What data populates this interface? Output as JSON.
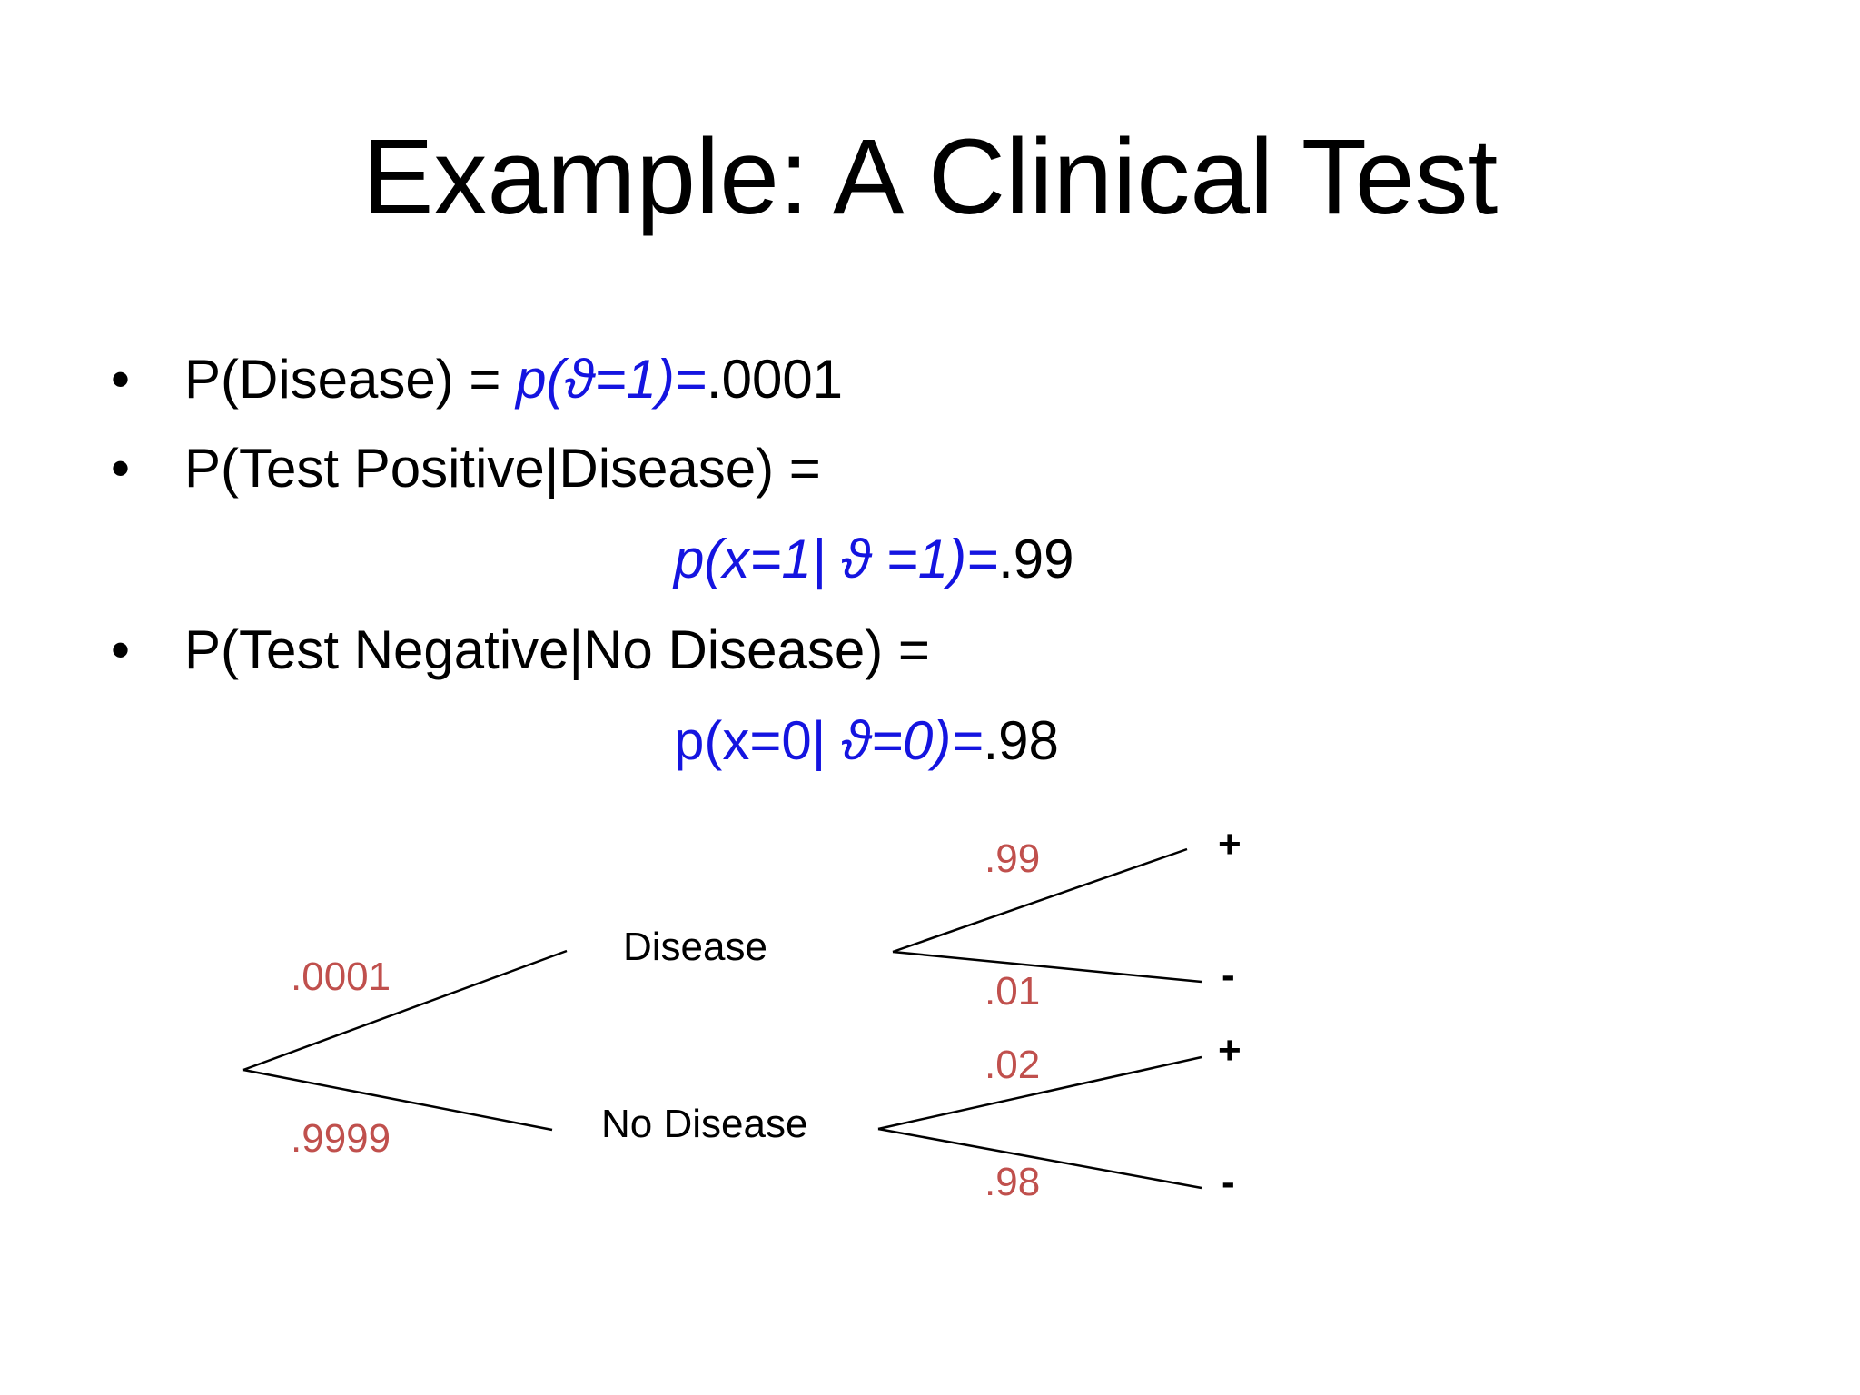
{
  "title": "Example: A Clinical Test",
  "bullets": [
    {
      "marker": "•",
      "prefix": "P(Disease) = ",
      "formula": "p(ϑ=1)=",
      "value": ".0001"
    },
    {
      "marker": "•",
      "prefix": "P(Test Positive|Disease) =",
      "formula": "p(x=1| ϑ =1)=",
      "value": ".99"
    },
    {
      "marker": "•",
      "prefix": "P(Test Negative|No Disease) =",
      "formula_upright": "p(x=0| ",
      "formula": "ϑ=0)=",
      "value": ".98"
    }
  ],
  "tree": {
    "prob_color": "#c0504d",
    "root_branches": [
      {
        "label": "Disease",
        "prob": ".0001"
      },
      {
        "label": "No Disease",
        "prob": ".9999"
      }
    ],
    "disease_outcomes": [
      {
        "symbol": "+",
        "prob": ".99"
      },
      {
        "symbol": "-",
        "prob": ".01"
      }
    ],
    "no_disease_outcomes": [
      {
        "symbol": "+",
        "prob": ".02"
      },
      {
        "symbol": "-",
        "prob": ".98"
      }
    ]
  }
}
